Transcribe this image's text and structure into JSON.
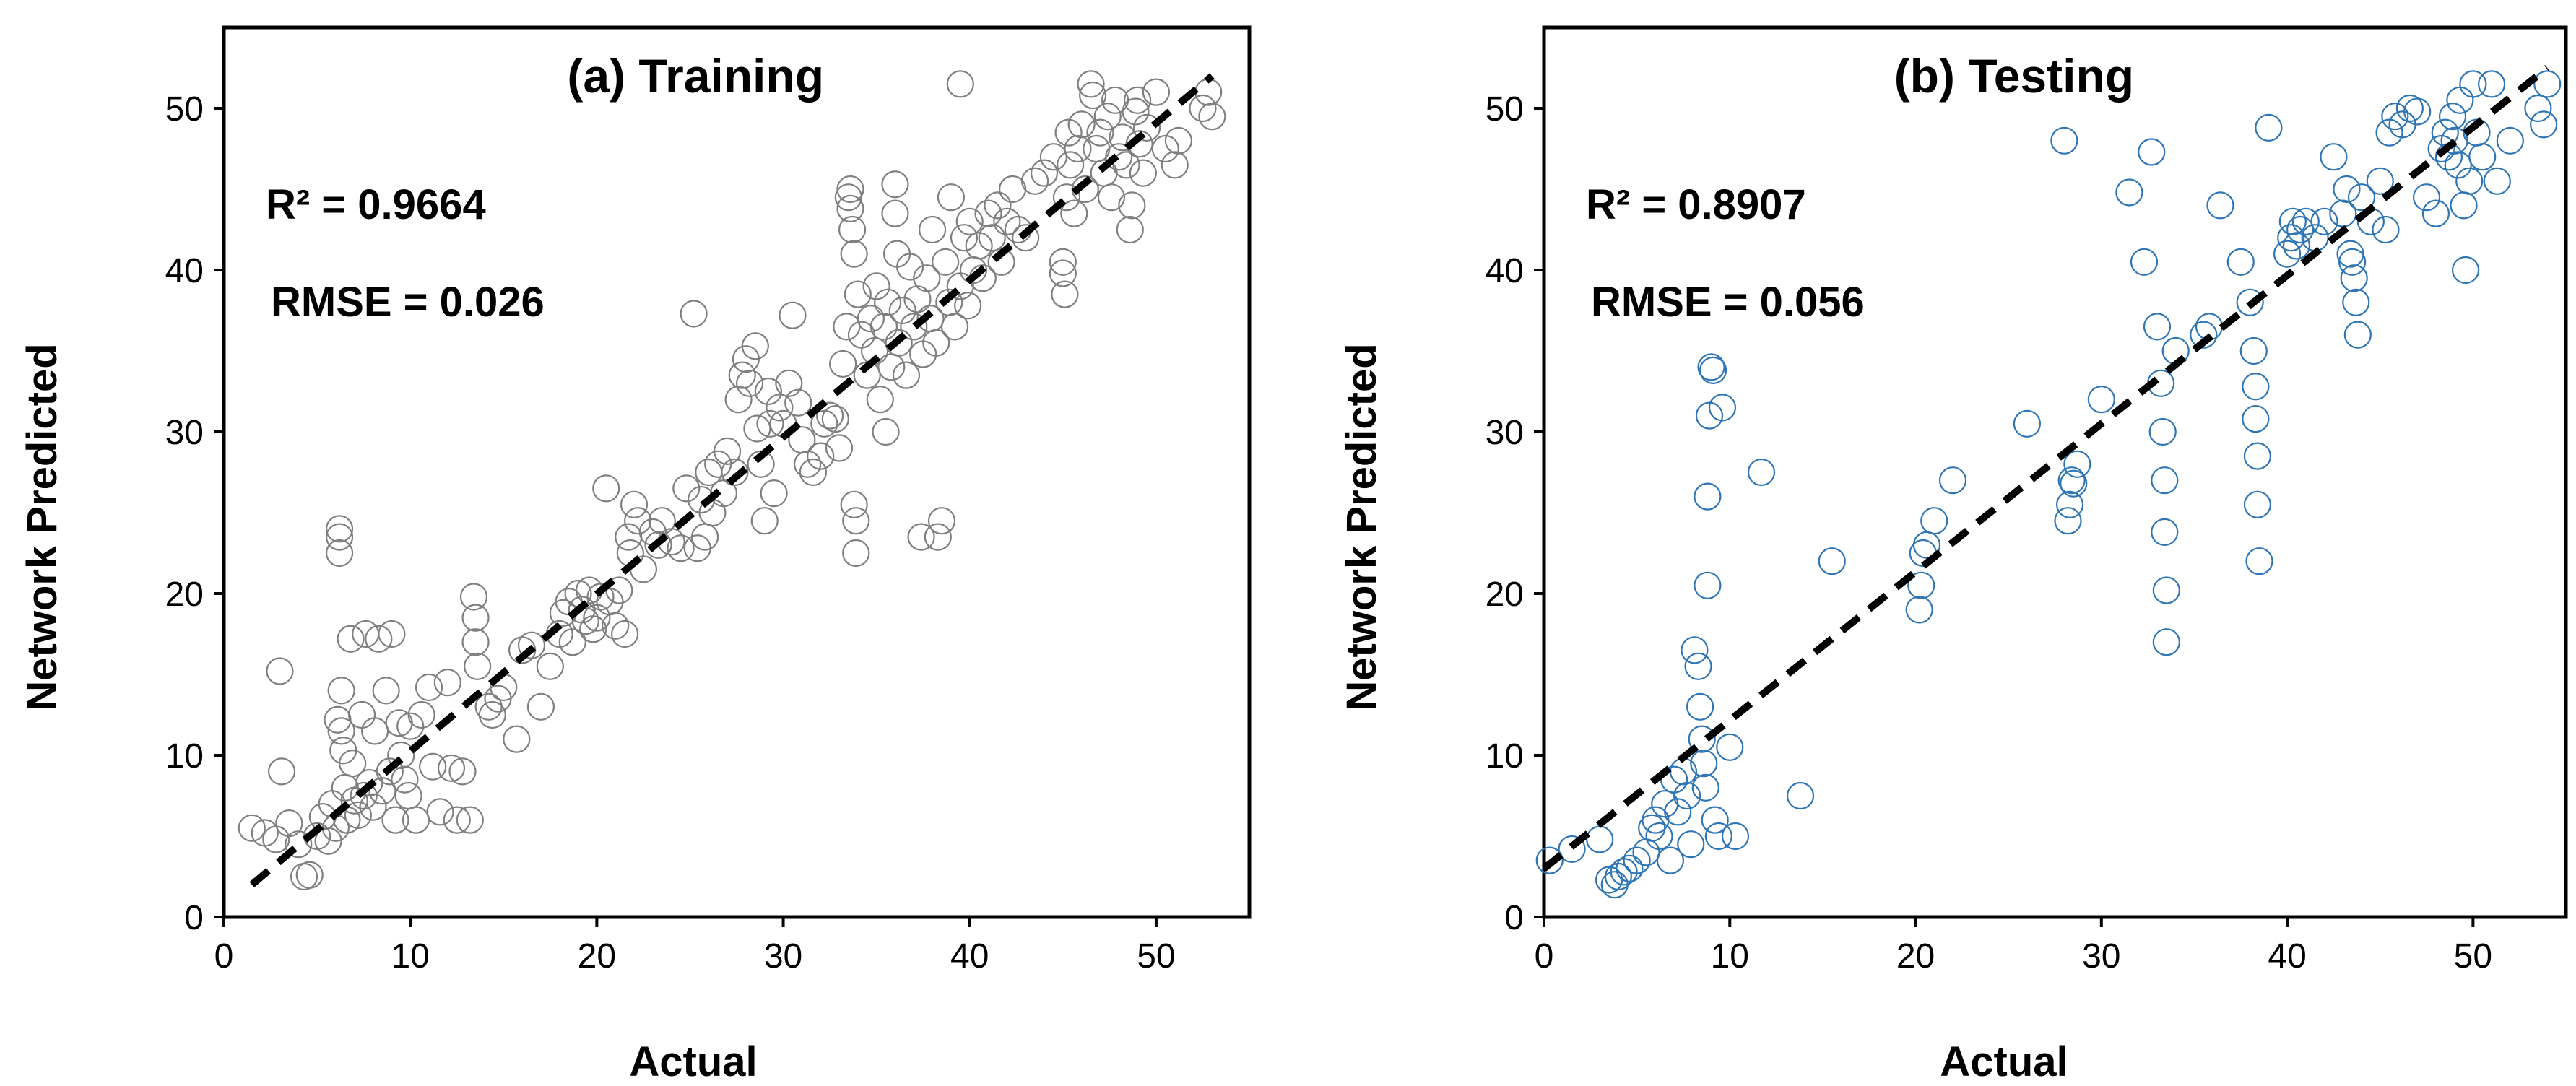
{
  "chart_data": [
    {
      "type": "scatter",
      "title": "(a) Training",
      "xlabel": "Actual",
      "ylabel": "Network Predicted",
      "xlim": [
        0,
        55
      ],
      "ylim": [
        0,
        55
      ],
      "xticks": [
        0,
        10,
        20,
        30,
        40,
        50
      ],
      "yticks": [
        0,
        10,
        20,
        30,
        40,
        50
      ],
      "r2_text": "R² = 0.9664",
      "rmse_text": "RMSE = 0.026",
      "marker_color": "#7f7f7f",
      "fit_line": {
        "x": [
          1.5,
          53
        ],
        "y": [
          2,
          52
        ],
        "color": "#000000",
        "style": "dashed"
      },
      "points": [
        [
          1.5,
          5.5
        ],
        [
          2.2,
          5.2
        ],
        [
          2.8,
          4.8
        ],
        [
          3.0,
          15.2
        ],
        [
          3.1,
          9.0
        ],
        [
          3.5,
          5.8
        ],
        [
          4.0,
          4.5
        ],
        [
          4.3,
          2.5
        ],
        [
          4.6,
          2.6
        ],
        [
          5.0,
          5.0
        ],
        [
          5.3,
          6.2
        ],
        [
          5.6,
          4.7
        ],
        [
          5.8,
          7.0
        ],
        [
          6.0,
          5.5
        ],
        [
          6.1,
          12.2
        ],
        [
          6.2,
          23.5
        ],
        [
          6.2,
          24.0
        ],
        [
          6.2,
          22.5
        ],
        [
          6.3,
          14.0
        ],
        [
          6.3,
          11.5
        ],
        [
          6.4,
          10.3
        ],
        [
          6.5,
          8.0
        ],
        [
          6.6,
          6.0
        ],
        [
          6.8,
          17.2
        ],
        [
          6.9,
          9.5
        ],
        [
          7.0,
          7.2
        ],
        [
          7.2,
          6.3
        ],
        [
          7.4,
          12.5
        ],
        [
          7.5,
          7.5
        ],
        [
          7.6,
          17.5
        ],
        [
          7.8,
          8.3
        ],
        [
          8.0,
          6.8
        ],
        [
          8.1,
          11.5
        ],
        [
          8.3,
          17.2
        ],
        [
          8.5,
          7.8
        ],
        [
          8.7,
          14.0
        ],
        [
          8.9,
          9.0
        ],
        [
          9.0,
          17.5
        ],
        [
          9.2,
          6.0
        ],
        [
          9.4,
          12.0
        ],
        [
          9.5,
          10.0
        ],
        [
          9.7,
          8.5
        ],
        [
          9.9,
          7.5
        ],
        [
          10.0,
          11.8
        ],
        [
          10.3,
          6.0
        ],
        [
          10.6,
          12.5
        ],
        [
          11.0,
          14.2
        ],
        [
          11.2,
          9.3
        ],
        [
          11.6,
          6.5
        ],
        [
          12.0,
          14.5
        ],
        [
          12.2,
          9.2
        ],
        [
          12.5,
          6.0
        ],
        [
          12.8,
          9.0
        ],
        [
          13.2,
          6.0
        ],
        [
          13.4,
          19.8
        ],
        [
          13.5,
          18.5
        ],
        [
          13.5,
          17.0
        ],
        [
          13.6,
          15.5
        ],
        [
          14.2,
          13.0
        ],
        [
          14.4,
          12.5
        ],
        [
          14.7,
          13.5
        ],
        [
          15.0,
          14.2
        ],
        [
          15.7,
          11.0
        ],
        [
          16.0,
          16.5
        ],
        [
          16.5,
          16.8
        ],
        [
          17.0,
          13.0
        ],
        [
          17.5,
          15.5
        ],
        [
          18.0,
          17.5
        ],
        [
          18.2,
          18.8
        ],
        [
          18.5,
          19.5
        ],
        [
          18.7,
          17.0
        ],
        [
          19.0,
          20.0
        ],
        [
          19.2,
          19.0
        ],
        [
          19.4,
          18.3
        ],
        [
          19.6,
          20.2
        ],
        [
          19.8,
          17.8
        ],
        [
          20.0,
          18.5
        ],
        [
          20.2,
          19.8
        ],
        [
          20.5,
          26.5
        ],
        [
          20.7,
          19.5
        ],
        [
          21.0,
          18.0
        ],
        [
          21.2,
          20.2
        ],
        [
          21.5,
          17.5
        ],
        [
          21.7,
          23.5
        ],
        [
          21.8,
          22.5
        ],
        [
          22.0,
          25.5
        ],
        [
          22.2,
          24.5
        ],
        [
          22.5,
          21.5
        ],
        [
          23.0,
          23.8
        ],
        [
          23.3,
          23.0
        ],
        [
          23.5,
          24.5
        ],
        [
          24.0,
          23.2
        ],
        [
          24.5,
          22.8
        ],
        [
          24.8,
          26.5
        ],
        [
          25.2,
          37.3
        ],
        [
          25.4,
          22.8
        ],
        [
          25.6,
          25.8
        ],
        [
          25.8,
          23.5
        ],
        [
          26.0,
          27.5
        ],
        [
          26.2,
          25.0
        ],
        [
          26.5,
          28.0
        ],
        [
          26.8,
          26.2
        ],
        [
          27.0,
          28.8
        ],
        [
          27.4,
          27.5
        ],
        [
          27.6,
          32.0
        ],
        [
          27.8,
          33.5
        ],
        [
          28.0,
          34.5
        ],
        [
          28.2,
          33.0
        ],
        [
          28.5,
          35.3
        ],
        [
          28.6,
          30.2
        ],
        [
          28.8,
          28.0
        ],
        [
          29.0,
          24.5
        ],
        [
          29.2,
          32.5
        ],
        [
          29.3,
          30.5
        ],
        [
          29.5,
          26.2
        ],
        [
          29.8,
          31.5
        ],
        [
          30.0,
          30.5
        ],
        [
          30.3,
          33.0
        ],
        [
          30.5,
          37.2
        ],
        [
          30.8,
          31.8
        ],
        [
          31.0,
          29.5
        ],
        [
          31.3,
          28.0
        ],
        [
          31.6,
          27.5
        ],
        [
          32.0,
          28.5
        ],
        [
          32.2,
          30.5
        ],
        [
          32.5,
          31.0
        ],
        [
          32.8,
          30.8
        ],
        [
          33.0,
          29.0
        ],
        [
          33.2,
          34.2
        ],
        [
          33.4,
          36.5
        ],
        [
          33.5,
          44.5
        ],
        [
          33.6,
          45.0
        ],
        [
          33.6,
          43.8
        ],
        [
          33.7,
          42.5
        ],
        [
          33.8,
          41.0
        ],
        [
          33.8,
          25.5
        ],
        [
          33.9,
          24.5
        ],
        [
          33.9,
          22.5
        ],
        [
          34.0,
          38.5
        ],
        [
          34.2,
          36.0
        ],
        [
          34.5,
          33.5
        ],
        [
          34.7,
          37.0
        ],
        [
          34.9,
          35.0
        ],
        [
          35.0,
          39.0
        ],
        [
          35.2,
          32.0
        ],
        [
          35.4,
          36.5
        ],
        [
          35.5,
          30.0
        ],
        [
          35.6,
          38.0
        ],
        [
          35.8,
          34.0
        ],
        [
          36.0,
          45.3
        ],
        [
          36.0,
          43.5
        ],
        [
          36.1,
          41.0
        ],
        [
          36.2,
          35.5
        ],
        [
          36.4,
          37.5
        ],
        [
          36.6,
          33.5
        ],
        [
          36.8,
          40.2
        ],
        [
          37.0,
          36.5
        ],
        [
          37.2,
          38.2
        ],
        [
          37.4,
          23.5
        ],
        [
          37.5,
          34.8
        ],
        [
          37.7,
          39.5
        ],
        [
          37.9,
          37.0
        ],
        [
          38.0,
          42.5
        ],
        [
          38.2,
          35.5
        ],
        [
          38.3,
          23.5
        ],
        [
          38.5,
          24.5
        ],
        [
          38.7,
          40.5
        ],
        [
          38.9,
          38.0
        ],
        [
          39.0,
          44.5
        ],
        [
          39.2,
          36.5
        ],
        [
          39.5,
          39.0
        ],
        [
          39.7,
          42.0
        ],
        [
          39.9,
          37.8
        ],
        [
          40.0,
          43.0
        ],
        [
          40.2,
          40.0
        ],
        [
          40.5,
          41.5
        ],
        [
          40.7,
          39.5
        ],
        [
          41.0,
          43.5
        ],
        [
          41.2,
          42.0
        ],
        [
          41.5,
          44.0
        ],
        [
          41.7,
          40.5
        ],
        [
          42.0,
          43.0
        ],
        [
          42.3,
          45.0
        ],
        [
          42.6,
          42.5
        ],
        [
          43.0,
          42.0
        ],
        [
          43.5,
          45.5
        ],
        [
          44.0,
          46.0
        ],
        [
          44.5,
          47.0
        ],
        [
          45.0,
          40.5
        ],
        [
          45.0,
          39.8
        ],
        [
          45.1,
          38.5
        ],
        [
          45.2,
          44.5
        ],
        [
          45.3,
          48.5
        ],
        [
          45.4,
          46.5
        ],
        [
          45.6,
          43.5
        ],
        [
          45.8,
          47.5
        ],
        [
          46.0,
          49.0
        ],
        [
          46.2,
          45.0
        ],
        [
          46.5,
          51.5
        ],
        [
          46.6,
          50.8
        ],
        [
          46.8,
          47.5
        ],
        [
          47.0,
          48.5
        ],
        [
          47.2,
          46.0
        ],
        [
          47.4,
          49.5
        ],
        [
          47.6,
          44.5
        ],
        [
          47.8,
          50.5
        ],
        [
          48.0,
          47.0
        ],
        [
          48.2,
          48.2
        ],
        [
          48.4,
          46.5
        ],
        [
          48.6,
          42.5
        ],
        [
          48.7,
          44.0
        ],
        [
          48.9,
          49.8
        ],
        [
          49.0,
          50.5
        ],
        [
          49.1,
          47.8
        ],
        [
          49.3,
          46.0
        ],
        [
          49.5,
          48.8
        ],
        [
          50.0,
          51.0
        ],
        [
          50.5,
          47.5
        ],
        [
          51.0,
          46.5
        ],
        [
          51.2,
          48.0
        ],
        [
          52.5,
          50.0
        ],
        [
          52.8,
          51.0
        ],
        [
          53.0,
          49.5
        ],
        [
          39.5,
          51.5
        ]
      ]
    },
    {
      "type": "scatter",
      "title": "(b) Testing",
      "xlabel": "Actual",
      "ylabel": "Network Predicted",
      "xlim": [
        0,
        55
      ],
      "ylim": [
        0,
        55
      ],
      "xticks": [
        0,
        10,
        20,
        30,
        40,
        50
      ],
      "yticks": [
        0,
        10,
        20,
        30,
        40,
        50
      ],
      "r2_text": "R² = 0.8907",
      "rmse_text": "RMSE = 0.056",
      "marker_color": "#2e75b6",
      "fit_line": {
        "x": [
          0,
          54
        ],
        "y": [
          3,
          52.5
        ],
        "color": "#000000",
        "style": "dashed"
      },
      "points": [
        [
          0.3,
          3.5
        ],
        [
          1.5,
          4.2
        ],
        [
          3.0,
          4.8
        ],
        [
          3.5,
          2.3
        ],
        [
          3.8,
          2.0
        ],
        [
          4.0,
          2.5
        ],
        [
          4.3,
          2.8
        ],
        [
          4.6,
          3.0
        ],
        [
          5.0,
          3.5
        ],
        [
          5.5,
          4.0
        ],
        [
          5.8,
          5.5
        ],
        [
          6.0,
          6.0
        ],
        [
          6.2,
          5.0
        ],
        [
          6.5,
          7.0
        ],
        [
          6.8,
          3.5
        ],
        [
          7.0,
          8.5
        ],
        [
          7.2,
          6.5
        ],
        [
          7.5,
          9.0
        ],
        [
          7.7,
          7.5
        ],
        [
          7.9,
          4.5
        ],
        [
          8.1,
          16.5
        ],
        [
          8.3,
          15.5
        ],
        [
          8.4,
          13.0
        ],
        [
          8.5,
          11.0
        ],
        [
          8.6,
          9.5
        ],
        [
          8.7,
          8.0
        ],
        [
          8.8,
          20.5
        ],
        [
          8.8,
          26.0
        ],
        [
          8.9,
          31.0
        ],
        [
          9.0,
          34.0
        ],
        [
          9.1,
          33.8
        ],
        [
          9.2,
          6.0
        ],
        [
          9.4,
          5.0
        ],
        [
          9.6,
          31.5
        ],
        [
          10.0,
          10.5
        ],
        [
          10.3,
          5.0
        ],
        [
          11.7,
          27.5
        ],
        [
          13.8,
          7.5
        ],
        [
          15.5,
          22.0
        ],
        [
          20.2,
          19.0
        ],
        [
          20.3,
          20.5
        ],
        [
          20.4,
          22.5
        ],
        [
          20.6,
          23.0
        ],
        [
          21.0,
          24.5
        ],
        [
          22.0,
          27.0
        ],
        [
          26.0,
          30.5
        ],
        [
          28.0,
          48.0
        ],
        [
          28.2,
          24.5
        ],
        [
          28.3,
          25.5
        ],
        [
          28.4,
          27.0
        ],
        [
          28.5,
          26.8
        ],
        [
          28.7,
          28.0
        ],
        [
          30.0,
          32.0
        ],
        [
          31.5,
          44.8
        ],
        [
          32.3,
          40.5
        ],
        [
          32.7,
          47.3
        ],
        [
          33.0,
          36.5
        ],
        [
          33.2,
          33.0
        ],
        [
          33.3,
          30.0
        ],
        [
          33.4,
          27.0
        ],
        [
          33.4,
          23.8
        ],
        [
          33.5,
          20.2
        ],
        [
          33.5,
          17.0
        ],
        [
          34.0,
          35.0
        ],
        [
          35.5,
          36.0
        ],
        [
          35.8,
          36.5
        ],
        [
          36.4,
          44.0
        ],
        [
          37.5,
          40.5
        ],
        [
          38.0,
          38.0
        ],
        [
          38.2,
          35.0
        ],
        [
          38.3,
          32.8
        ],
        [
          38.3,
          30.8
        ],
        [
          38.4,
          28.5
        ],
        [
          38.4,
          25.5
        ],
        [
          38.5,
          22.0
        ],
        [
          39.0,
          48.8
        ],
        [
          40.0,
          41.0
        ],
        [
          40.2,
          42.0
        ],
        [
          40.3,
          43.0
        ],
        [
          40.5,
          41.5
        ],
        [
          40.7,
          42.5
        ],
        [
          41.0,
          43.0
        ],
        [
          41.5,
          42.0
        ],
        [
          42.0,
          43.0
        ],
        [
          42.5,
          47.0
        ],
        [
          43.0,
          43.5
        ],
        [
          43.2,
          45.0
        ],
        [
          43.4,
          41.0
        ],
        [
          43.5,
          40.5
        ],
        [
          43.6,
          39.5
        ],
        [
          43.7,
          38.0
        ],
        [
          43.8,
          36.0
        ],
        [
          44.0,
          44.5
        ],
        [
          44.5,
          43.0
        ],
        [
          45.0,
          45.5
        ],
        [
          45.3,
          42.5
        ],
        [
          45.5,
          48.5
        ],
        [
          45.8,
          49.5
        ],
        [
          46.2,
          49.0
        ],
        [
          46.6,
          50.0
        ],
        [
          47.0,
          49.8
        ],
        [
          47.5,
          44.5
        ],
        [
          48.0,
          43.5
        ],
        [
          48.3,
          47.5
        ],
        [
          48.5,
          48.5
        ],
        [
          48.7,
          47.0
        ],
        [
          48.9,
          49.5
        ],
        [
          49.0,
          48.0
        ],
        [
          49.2,
          46.5
        ],
        [
          49.3,
          50.5
        ],
        [
          49.5,
          44.0
        ],
        [
          49.6,
          40.0
        ],
        [
          49.8,
          45.5
        ],
        [
          50.0,
          51.5
        ],
        [
          50.2,
          48.5
        ],
        [
          50.5,
          47.0
        ],
        [
          51.0,
          51.5
        ],
        [
          51.3,
          45.5
        ],
        [
          52.0,
          48.0
        ],
        [
          53.5,
          50.0
        ],
        [
          53.8,
          49.0
        ],
        [
          54.0,
          51.5
        ]
      ]
    }
  ]
}
